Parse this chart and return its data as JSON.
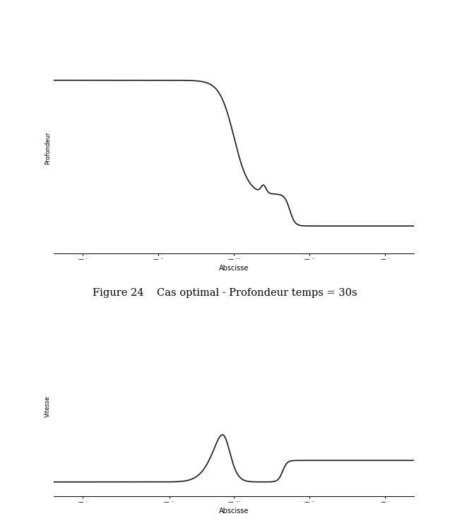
{
  "title": "Figure 24    Cas optimal - Profondeur temps = 30s",
  "plot1_ylabel": "Profondeur",
  "plot1_xlabel": "Abscisse",
  "plot2_ylabel": "Vitesse",
  "plot2_xlabel": "Abscisse",
  "line_color": "#1a1a1a",
  "line_width": 1.2,
  "background_color": "#ffffff",
  "fig_width": 6.37,
  "fig_height": 7.48,
  "tick_label_fontsize": 5.5,
  "axis_label_fontsize": 7,
  "ylabel_fontsize": 6,
  "title_fontsize": 10.5
}
